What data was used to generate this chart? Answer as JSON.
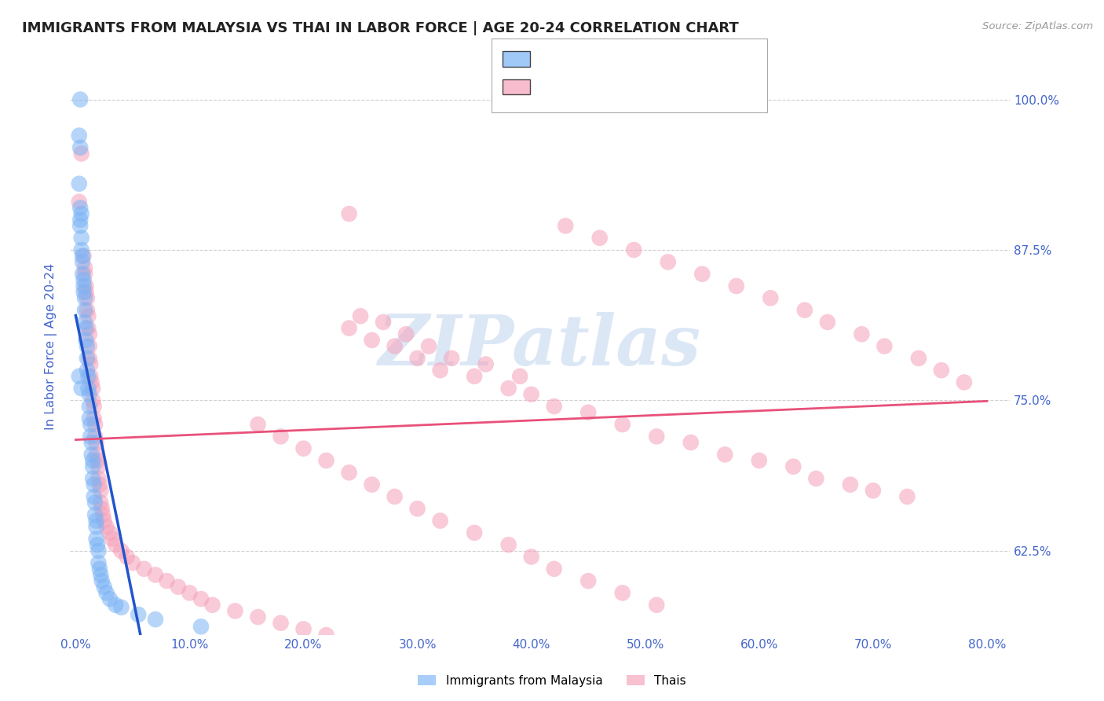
{
  "title": "IMMIGRANTS FROM MALAYSIA VS THAI IN LABOR FORCE | AGE 20-24 CORRELATION CHART",
  "source": "Source: ZipAtlas.com",
  "ylabel": "In Labor Force | Age 20-24",
  "xlim": [
    -0.005,
    0.82
  ],
  "ylim": [
    0.555,
    1.035
  ],
  "yticks": [
    0.625,
    0.75,
    0.875,
    1.0
  ],
  "ytick_labels": [
    "62.5%",
    "75.0%",
    "87.5%",
    "100.0%"
  ],
  "xticks": [
    0.0,
    0.1,
    0.2,
    0.3,
    0.4,
    0.5,
    0.6,
    0.7,
    0.8
  ],
  "xtick_labels": [
    "0.0%",
    "10.0%",
    "20.0%",
    "30.0%",
    "40.0%",
    "50.0%",
    "60.0%",
    "70.0%",
    "80.0%"
  ],
  "malaysia_color": "#7ab3f5",
  "thai_color": "#f5a0b8",
  "malaysia_line_color": "#2255cc",
  "thai_line_color": "#e8517a",
  "dashed_line_color": "#99bbee",
  "watermark_text": "ZIPatlas",
  "watermark_color": "#c5d8f0",
  "title_color": "#222222",
  "axis_label_color": "#4466cc",
  "tick_label_color": "#4466cc",
  "grid_color": "#d0d0d0",
  "background_color": "#ffffff",
  "malaysia_x": [
    0.004,
    0.003,
    0.004,
    0.003,
    0.004,
    0.005,
    0.004,
    0.004,
    0.005,
    0.005,
    0.006,
    0.006,
    0.006,
    0.007,
    0.007,
    0.007,
    0.008,
    0.008,
    0.008,
    0.009,
    0.009,
    0.01,
    0.01,
    0.01,
    0.011,
    0.011,
    0.012,
    0.012,
    0.012,
    0.013,
    0.013,
    0.014,
    0.014,
    0.015,
    0.015,
    0.015,
    0.016,
    0.016,
    0.017,
    0.017,
    0.018,
    0.018,
    0.018,
    0.019,
    0.02,
    0.02,
    0.021,
    0.022,
    0.023,
    0.025,
    0.027,
    0.03,
    0.035,
    0.04,
    0.055,
    0.07,
    0.11,
    0.003,
    0.005
  ],
  "malaysia_y": [
    1.0,
    0.97,
    0.96,
    0.93,
    0.91,
    0.905,
    0.9,
    0.895,
    0.885,
    0.875,
    0.87,
    0.865,
    0.855,
    0.85,
    0.845,
    0.84,
    0.835,
    0.825,
    0.815,
    0.81,
    0.8,
    0.795,
    0.785,
    0.775,
    0.77,
    0.76,
    0.755,
    0.745,
    0.735,
    0.73,
    0.72,
    0.715,
    0.705,
    0.7,
    0.695,
    0.685,
    0.68,
    0.67,
    0.665,
    0.655,
    0.65,
    0.645,
    0.635,
    0.63,
    0.625,
    0.615,
    0.61,
    0.605,
    0.6,
    0.595,
    0.59,
    0.585,
    0.58,
    0.578,
    0.572,
    0.568,
    0.562,
    0.77,
    0.76
  ],
  "thai_x": [
    0.005,
    0.007,
    0.008,
    0.008,
    0.009,
    0.009,
    0.01,
    0.01,
    0.011,
    0.011,
    0.012,
    0.012,
    0.012,
    0.013,
    0.013,
    0.014,
    0.015,
    0.015,
    0.016,
    0.016,
    0.017,
    0.017,
    0.018,
    0.018,
    0.019,
    0.02,
    0.02,
    0.021,
    0.022,
    0.022,
    0.023,
    0.024,
    0.025,
    0.027,
    0.03,
    0.032,
    0.035,
    0.04,
    0.045,
    0.05,
    0.06,
    0.07,
    0.08,
    0.09,
    0.1,
    0.11,
    0.12,
    0.14,
    0.16,
    0.18,
    0.2,
    0.22,
    0.24,
    0.26,
    0.28,
    0.3,
    0.32,
    0.35,
    0.38,
    0.4,
    0.42,
    0.45,
    0.48,
    0.51,
    0.54,
    0.57,
    0.6,
    0.63,
    0.65,
    0.68,
    0.7,
    0.73,
    0.25,
    0.27,
    0.29,
    0.31,
    0.33,
    0.36,
    0.39,
    0.003,
    0.24,
    0.43,
    0.46,
    0.49,
    0.52,
    0.55,
    0.58,
    0.61,
    0.64,
    0.66,
    0.69,
    0.71,
    0.74,
    0.76,
    0.78,
    0.16,
    0.18,
    0.2,
    0.22,
    0.24,
    0.26,
    0.28,
    0.3,
    0.32,
    0.35,
    0.38,
    0.4,
    0.42,
    0.45,
    0.48,
    0.51
  ],
  "thai_y": [
    0.955,
    0.87,
    0.86,
    0.855,
    0.845,
    0.84,
    0.835,
    0.825,
    0.82,
    0.81,
    0.805,
    0.795,
    0.785,
    0.78,
    0.77,
    0.765,
    0.76,
    0.75,
    0.745,
    0.735,
    0.73,
    0.72,
    0.715,
    0.705,
    0.7,
    0.695,
    0.685,
    0.68,
    0.675,
    0.665,
    0.66,
    0.655,
    0.65,
    0.645,
    0.64,
    0.635,
    0.63,
    0.625,
    0.62,
    0.615,
    0.61,
    0.605,
    0.6,
    0.595,
    0.59,
    0.585,
    0.58,
    0.575,
    0.57,
    0.565,
    0.56,
    0.555,
    0.81,
    0.8,
    0.795,
    0.785,
    0.775,
    0.77,
    0.76,
    0.755,
    0.745,
    0.74,
    0.73,
    0.72,
    0.715,
    0.705,
    0.7,
    0.695,
    0.685,
    0.68,
    0.675,
    0.67,
    0.82,
    0.815,
    0.805,
    0.795,
    0.785,
    0.78,
    0.77,
    0.915,
    0.905,
    0.895,
    0.885,
    0.875,
    0.865,
    0.855,
    0.845,
    0.835,
    0.825,
    0.815,
    0.805,
    0.795,
    0.785,
    0.775,
    0.765,
    0.73,
    0.72,
    0.71,
    0.7,
    0.69,
    0.68,
    0.67,
    0.66,
    0.65,
    0.64,
    0.63,
    0.62,
    0.61,
    0.6,
    0.59,
    0.58
  ]
}
